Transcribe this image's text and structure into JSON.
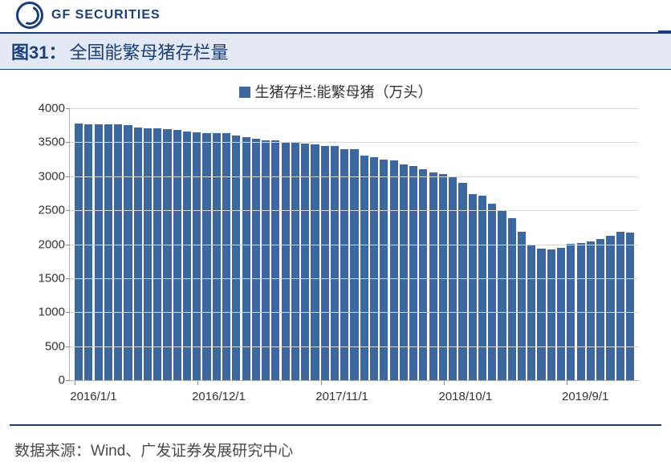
{
  "brand": {
    "text": "GF SECURITIES"
  },
  "title": {
    "fig_label": "图31：",
    "text": "全国能繁母猪存栏量"
  },
  "legend": {
    "label": "生猪存栏:能繁母猪（万头）",
    "swatch_color": "#3d679f"
  },
  "source": {
    "prefix": "数据来源：",
    "text": "Wind、广发证券发展研究中心"
  },
  "chart": {
    "type": "bar",
    "ymin": 0,
    "ymax": 4000,
    "ytick_step": 500,
    "yticks": [
      0,
      500,
      1000,
      1500,
      2000,
      2500,
      3000,
      3500,
      4000
    ],
    "xlabels": [
      "2016/1/1",
      "2016/12/1",
      "2017/11/1",
      "2018/10/1",
      "2019/9/1"
    ],
    "xlabel_positions_pct": [
      1.0,
      22.5,
      44.2,
      65.8,
      87.3
    ],
    "bar_color": "#3d679f",
    "grid_color": "#d6d6d6",
    "axis_color": "#b0b0b0",
    "background_color": "#ffffff",
    "values": [
      3780,
      3770,
      3760,
      3760,
      3760,
      3750,
      3720,
      3700,
      3700,
      3690,
      3680,
      3660,
      3650,
      3640,
      3640,
      3630,
      3600,
      3580,
      3550,
      3530,
      3530,
      3510,
      3500,
      3480,
      3470,
      3450,
      3440,
      3400,
      3400,
      3300,
      3280,
      3250,
      3230,
      3180,
      3150,
      3100,
      3060,
      3030,
      2980,
      2900,
      2740,
      2710,
      2600,
      2500,
      2380,
      2180,
      2000,
      1930,
      1920,
      1950,
      2010,
      2020,
      2040,
      2080,
      2120,
      2180,
      2170
    ],
    "title_fontsize": 22,
    "legend_fontsize": 18,
    "tick_fontsize": 15
  },
  "colors": {
    "brand_primary": "#1a3e7a",
    "title_bg": "#e2e9f4",
    "text_dark": "#333333",
    "text_muted": "#4a4a4a"
  }
}
